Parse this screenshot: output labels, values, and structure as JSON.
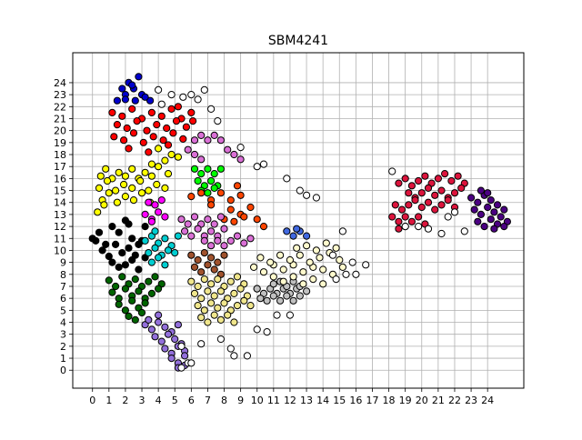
{
  "chart_data": {
    "type": "scatter",
    "title": "SBM4241",
    "xlabel": "",
    "ylabel": "",
    "xlim": [
      -1.2,
      26.2
    ],
    "ylim": [
      -1.5,
      26.5
    ],
    "x_ticks": [
      0,
      1,
      2,
      3,
      4,
      5,
      6,
      7,
      8,
      9,
      10,
      11,
      12,
      13,
      14,
      15,
      16,
      17,
      18,
      19,
      20,
      21,
      22,
      23,
      24
    ],
    "y_ticks": [
      0,
      1,
      2,
      3,
      4,
      5,
      6,
      7,
      8,
      9,
      10,
      11,
      12,
      13,
      14,
      15,
      16,
      17,
      18,
      19,
      20,
      21,
      22,
      23,
      24
    ],
    "grid": true,
    "legend": "none",
    "marker_edge_color": "#000000",
    "series": [
      {
        "color": "#0000cd",
        "x": [
          1.5,
          2.0,
          2.5,
          3.0,
          3.5,
          2.2,
          2.8,
          1.8,
          2.6,
          3.2,
          2.4,
          2.0
        ],
        "y": [
          22.5,
          23.0,
          23.5,
          23.0,
          22.5,
          24.0,
          24.5,
          23.5,
          22.5,
          22.8,
          23.8,
          22.6
        ]
      },
      {
        "color": "#ff0000",
        "x": [
          1.2,
          1.8,
          2.4,
          3.0,
          3.6,
          4.2,
          4.8,
          5.4,
          6.0,
          1.5,
          2.1,
          2.7,
          3.3,
          3.9,
          4.5,
          5.1,
          5.7,
          1.3,
          1.9,
          2.5,
          3.1,
          3.7,
          4.3,
          4.9,
          5.5,
          6.1,
          2.2,
          3.4,
          4.6,
          5.2
        ],
        "y": [
          21.5,
          21.2,
          21.8,
          21.0,
          21.5,
          21.2,
          21.8,
          21.0,
          21.5,
          20.5,
          20.2,
          20.8,
          20.0,
          20.5,
          20.2,
          20.8,
          20.3,
          19.5,
          19.2,
          19.8,
          19.0,
          19.5,
          19.2,
          19.8,
          19.3,
          20.8,
          18.5,
          18.2,
          18.8,
          22.0
        ]
      },
      {
        "color": "#ffff00",
        "x": [
          0.5,
          0.8,
          1.2,
          1.6,
          2.0,
          2.4,
          2.8,
          3.2,
          3.6,
          4.0,
          4.4,
          4.8,
          0.4,
          0.9,
          1.4,
          1.9,
          2.4,
          2.9,
          3.4,
          3.9,
          4.4,
          0.6,
          1.0,
          1.5,
          2.0,
          2.5,
          3.0,
          3.5,
          4.0,
          5.2,
          0.3,
          0.7,
          3.6,
          4.6
        ],
        "y": [
          16.2,
          16.8,
          16.0,
          16.5,
          16.2,
          16.8,
          16.0,
          16.5,
          16.2,
          17.0,
          17.5,
          18.0,
          15.2,
          15.8,
          15.0,
          15.5,
          15.2,
          15.8,
          15.0,
          15.5,
          15.2,
          14.2,
          14.8,
          14.0,
          14.5,
          14.2,
          14.8,
          14.0,
          18.5,
          17.8,
          13.2,
          13.8,
          17.2,
          16.4
        ]
      },
      {
        "color": "#000000",
        "x": [
          0.0,
          0.4,
          0.8,
          1.2,
          1.6,
          2.0,
          2.4,
          2.8,
          3.2,
          0.6,
          1.0,
          1.4,
          1.8,
          2.2,
          2.6,
          3.0,
          1.2,
          1.6,
          2.0,
          2.4,
          2.8,
          3.2,
          0.2,
          2.2
        ],
        "y": [
          11.0,
          11.5,
          10.5,
          12.0,
          11.5,
          12.5,
          11.0,
          10.5,
          12.0,
          10.0,
          9.5,
          10.5,
          9.8,
          10.2,
          9.6,
          10.8,
          9.0,
          8.6,
          8.8,
          9.2,
          8.4,
          9.4,
          10.8,
          12.2
        ]
      },
      {
        "color": "#00ced1",
        "x": [
          3.2,
          3.6,
          4.0,
          4.4,
          4.8,
          5.2,
          3.4,
          3.8,
          4.2,
          4.6,
          5.0,
          3.6,
          4.0,
          4.4,
          3.8
        ],
        "y": [
          10.8,
          11.2,
          10.6,
          11.0,
          10.4,
          11.2,
          9.8,
          10.2,
          9.6,
          10.0,
          9.8,
          9.0,
          9.4,
          8.8,
          11.6
        ]
      },
      {
        "color": "#006400",
        "x": [
          1.0,
          1.4,
          1.8,
          2.2,
          2.6,
          3.0,
          3.4,
          3.8,
          4.2,
          1.2,
          1.6,
          2.0,
          2.4,
          2.8,
          3.2,
          3.6,
          4.0,
          1.6,
          2.0,
          2.4,
          2.8,
          3.2,
          2.2,
          2.6,
          3.0
        ],
        "y": [
          7.5,
          7.0,
          7.8,
          7.2,
          7.6,
          7.0,
          7.4,
          7.8,
          7.2,
          6.5,
          6.0,
          6.8,
          6.2,
          6.6,
          6.0,
          6.4,
          6.8,
          5.5,
          5.0,
          5.8,
          5.2,
          5.6,
          4.5,
          4.2,
          4.8
        ]
      },
      {
        "color": "#9370db",
        "x": [
          3.2,
          3.6,
          4.0,
          4.4,
          4.8,
          5.2,
          3.8,
          4.2,
          4.6,
          5.0,
          5.4,
          4.4,
          4.8,
          5.2,
          5.6,
          4.8,
          5.2,
          5.6,
          5.2,
          5.6,
          3.4,
          4.0
        ],
        "y": [
          3.8,
          3.4,
          4.0,
          3.6,
          3.2,
          3.8,
          2.8,
          2.4,
          3.0,
          2.6,
          2.2,
          1.8,
          1.4,
          2.0,
          1.6,
          1.0,
          0.6,
          1.2,
          0.2,
          0.4,
          4.2,
          4.6
        ]
      },
      {
        "color": "#ff00ff",
        "x": [
          3.2,
          3.6,
          4.0,
          4.4,
          3.4,
          3.8,
          4.2,
          3.6
        ],
        "y": [
          13.0,
          12.6,
          13.2,
          12.8,
          14.0,
          13.8,
          14.2,
          12.4
        ]
      },
      {
        "color": "#00ff00",
        "x": [
          6.2,
          6.6,
          7.0,
          7.4,
          7.8,
          6.4,
          6.8,
          7.2,
          7.6,
          6.6,
          7.0,
          7.4
        ],
        "y": [
          16.8,
          16.4,
          16.8,
          16.4,
          16.8,
          15.8,
          15.4,
          15.8,
          15.4,
          15.0,
          14.8,
          15.2
        ]
      },
      {
        "color": "#ff4500",
        "x": [
          6.0,
          6.6,
          7.2,
          7.8,
          8.4,
          9.0,
          8.4,
          9.0,
          9.6,
          8.0,
          8.6,
          9.2,
          10.0,
          10.4,
          8.8,
          7.2
        ],
        "y": [
          14.5,
          14.8,
          14.2,
          14.8,
          14.2,
          14.6,
          13.4,
          13.0,
          13.6,
          12.6,
          12.4,
          12.8,
          12.6,
          12.0,
          15.4,
          13.8
        ]
      },
      {
        "color": "#da70d6",
        "x": [
          5.4,
          5.8,
          6.2,
          6.6,
          7.0,
          7.4,
          7.8,
          5.6,
          6.0,
          6.4,
          6.8,
          7.2,
          7.6,
          8.0,
          6.2,
          6.6,
          7.0,
          7.4,
          7.8,
          8.2,
          8.6,
          9.0,
          6.8,
          7.2,
          7.6,
          8.0,
          8.4,
          8.8,
          9.2,
          9.6,
          5.8,
          6.2,
          6.6
        ],
        "y": [
          12.6,
          12.2,
          12.8,
          12.2,
          12.6,
          12.2,
          12.8,
          11.6,
          11.2,
          11.8,
          11.2,
          11.6,
          11.2,
          11.8,
          19.2,
          19.6,
          19.2,
          19.6,
          19.2,
          18.4,
          18.0,
          17.6,
          10.8,
          10.4,
          10.8,
          10.4,
          10.8,
          11.2,
          10.6,
          11.0,
          18.4,
          18.0,
          17.6
        ]
      },
      {
        "color": "#a0522d",
        "x": [
          6.0,
          6.4,
          6.8,
          7.2,
          7.6,
          8.0,
          6.2,
          6.6,
          7.0,
          7.4,
          7.8
        ],
        "y": [
          9.6,
          9.2,
          9.8,
          9.4,
          9.0,
          9.6,
          8.6,
          8.2,
          8.8,
          8.4,
          8.0
        ]
      },
      {
        "color": "#f0e68c",
        "x": [
          6.0,
          6.4,
          6.8,
          7.2,
          7.6,
          8.0,
          8.4,
          8.8,
          9.2,
          6.2,
          6.6,
          7.0,
          7.4,
          7.8,
          8.2,
          8.6,
          9.0,
          9.4,
          6.4,
          6.8,
          7.2,
          7.6,
          8.0,
          8.4,
          8.8,
          9.2,
          6.6,
          7.0,
          7.4,
          7.8,
          8.2,
          8.6,
          9.6,
          10.0
        ],
        "y": [
          7.4,
          7.0,
          7.6,
          7.2,
          7.6,
          7.0,
          7.4,
          7.8,
          7.2,
          6.4,
          6.0,
          6.6,
          6.2,
          6.6,
          6.0,
          6.4,
          6.8,
          6.2,
          5.4,
          5.0,
          5.6,
          5.2,
          5.6,
          5.0,
          5.4,
          5.8,
          4.4,
          4.0,
          4.6,
          4.2,
          4.6,
          4.0,
          5.4,
          6.8
        ]
      },
      {
        "color": "#c0c0c0",
        "x": [
          10.0,
          10.4,
          10.8,
          11.2,
          11.6,
          12.0,
          12.4,
          10.2,
          10.6,
          11.0,
          11.4,
          11.8,
          12.2,
          12.6,
          13.0,
          11.0,
          11.4,
          11.8,
          12.2,
          12.6
        ],
        "y": [
          6.8,
          6.4,
          6.8,
          6.4,
          6.8,
          6.4,
          6.8,
          6.0,
          5.8,
          6.2,
          5.8,
          6.2,
          5.8,
          6.2,
          6.6,
          7.2,
          7.4,
          7.0,
          7.4,
          7.0
        ]
      },
      {
        "color": "#fffacd",
        "x": [
          9.8,
          10.4,
          11.0,
          11.6,
          12.2,
          12.8,
          13.4,
          14.0,
          14.6,
          15.2,
          10.2,
          10.8,
          11.4,
          12.0,
          12.6,
          13.2,
          13.8,
          14.4,
          15.0,
          11.0,
          11.6,
          12.2,
          12.8,
          13.4,
          14.0,
          12.4,
          13.0,
          13.6,
          14.2,
          14.8
        ],
        "y": [
          8.6,
          8.2,
          8.8,
          8.4,
          8.8,
          8.2,
          8.6,
          8.4,
          8.0,
          8.6,
          9.4,
          9.0,
          9.6,
          9.2,
          9.6,
          9.0,
          9.4,
          9.8,
          9.2,
          7.8,
          7.4,
          7.8,
          7.2,
          7.6,
          7.2,
          10.2,
          10.4,
          10.0,
          10.6,
          10.2
        ]
      },
      {
        "color": "#4169e1",
        "x": [
          11.8,
          12.2,
          12.6,
          13.0,
          12.4
        ],
        "y": [
          11.6,
          11.2,
          11.6,
          11.2,
          11.8
        ]
      },
      {
        "color": "#dc143c",
        "x": [
          18.6,
          19.0,
          19.4,
          19.8,
          20.2,
          20.6,
          21.0,
          21.4,
          21.8,
          22.2,
          22.6,
          19.2,
          19.6,
          20.0,
          20.4,
          20.8,
          21.2,
          21.6,
          22.0,
          22.4,
          18.4,
          18.8,
          19.2,
          19.6,
          20.0,
          20.4,
          20.8,
          21.2,
          21.6,
          22.0,
          18.2,
          18.6,
          19.0,
          19.4,
          19.8,
          20.2,
          18.6,
          19.0
        ],
        "y": [
          15.6,
          16.0,
          15.4,
          15.8,
          16.2,
          15.6,
          16.0,
          16.4,
          15.8,
          16.2,
          15.6,
          14.8,
          14.4,
          14.8,
          15.2,
          14.6,
          15.0,
          14.4,
          14.8,
          15.2,
          13.8,
          13.4,
          13.8,
          14.2,
          13.6,
          14.0,
          13.4,
          13.8,
          14.2,
          13.6,
          12.8,
          12.4,
          12.8,
          12.4,
          12.8,
          12.2,
          11.8,
          12.0
        ]
      },
      {
        "color": "#4b0082",
        "x": [
          23.0,
          23.4,
          23.8,
          24.2,
          24.6,
          25.0,
          23.2,
          23.6,
          24.0,
          24.4,
          24.8,
          25.2,
          23.4,
          23.8,
          24.2,
          24.6,
          25.0,
          23.6,
          24.0,
          24.4
        ],
        "y": [
          14.4,
          14.0,
          14.6,
          14.2,
          13.8,
          13.4,
          13.4,
          13.0,
          13.6,
          13.2,
          12.8,
          12.4,
          12.4,
          12.0,
          12.6,
          12.2,
          12.0,
          15.0,
          14.8,
          11.8
        ]
      },
      {
        "color": "#ffffff",
        "x": [
          4.0,
          4.2,
          4.8,
          5.5,
          6.0,
          6.4,
          6.8,
          7.2,
          7.6,
          9.0,
          10.0,
          10.4,
          11.8,
          12.6,
          13.0,
          13.6,
          14.6,
          15.2,
          15.8,
          16.6,
          14.8,
          15.4,
          10.6,
          7.8,
          8.4,
          6.6,
          5.4,
          5.8,
          8.6,
          9.4,
          10.0,
          11.2,
          12.0,
          16.0,
          18.2,
          19.0,
          19.8,
          21.2,
          21.6,
          22.0,
          20.4,
          22.6,
          6.0,
          5.4
        ],
        "y": [
          23.4,
          22.2,
          23.0,
          22.8,
          23.0,
          22.6,
          23.4,
          21.8,
          20.8,
          18.6,
          17.0,
          17.2,
          16.0,
          15.0,
          14.6,
          14.4,
          9.6,
          11.6,
          9.0,
          8.8,
          7.6,
          8.0,
          3.2,
          2.6,
          1.8,
          2.2,
          2.0,
          0.6,
          1.2,
          1.2,
          3.4,
          4.6,
          4.6,
          8.0,
          16.6,
          12.0,
          12.0,
          11.4,
          12.8,
          13.2,
          11.8,
          11.6,
          0.6,
          0.2
        ]
      }
    ]
  }
}
